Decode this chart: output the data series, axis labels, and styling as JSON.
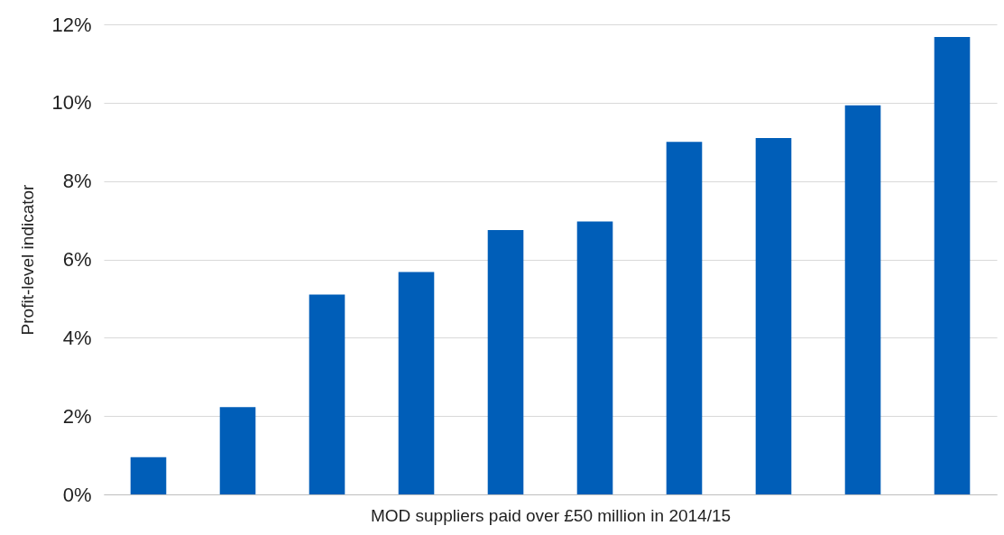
{
  "chart_data": {
    "type": "bar",
    "xlabel": "MOD suppliers paid over £50 million in 2014/15",
    "ylabel": "Profit-level indicator",
    "categories": [
      null,
      null,
      null,
      null,
      null,
      null,
      null,
      null,
      null,
      null
    ],
    "values": [
      0.95,
      2.23,
      5.1,
      5.68,
      6.75,
      6.97,
      9.0,
      9.1,
      9.93,
      11.68
    ],
    "color": "#005eb8",
    "ylim": [
      0,
      12
    ],
    "yticks": [
      {
        "value": 0,
        "label": "0%"
      },
      {
        "value": 2,
        "label": "2%"
      },
      {
        "value": 4,
        "label": "4%"
      },
      {
        "value": 6,
        "label": "6%"
      },
      {
        "value": 8,
        "label": "8%"
      },
      {
        "value": 10,
        "label": "10%"
      },
      {
        "value": 12,
        "label": "12%"
      }
    ],
    "grid": "y"
  }
}
